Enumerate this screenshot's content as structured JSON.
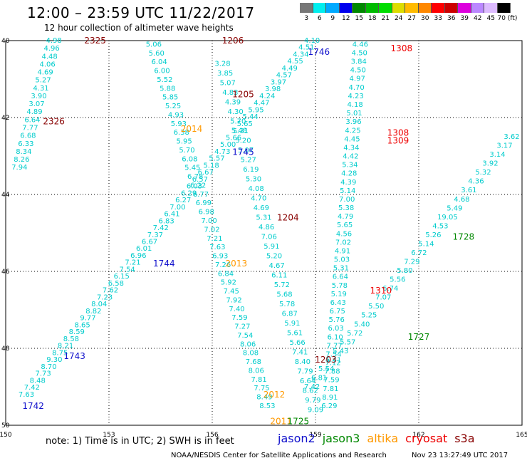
{
  "header": {
    "title": "12:00 – 23:59 UTC 11/22/2017",
    "subtitle": "12 hour collection of altimeter wave heights"
  },
  "color_scale": {
    "colors": [
      "#777777",
      "#00eeee",
      "#00aaff",
      "#0000ee",
      "#008800",
      "#00bb00",
      "#00dd00",
      "#dddd00",
      "#ffbb00",
      "#ff8800",
      "#ff0000",
      "#cc0000",
      "#dd00dd",
      "#bb88ff",
      "#ddbbff",
      "#000000"
    ],
    "labels": [
      "3",
      "6",
      "9",
      "12",
      "15",
      "18",
      "21",
      "24",
      "27",
      "30",
      "33",
      "36",
      "39",
      "42",
      "45",
      "70 (ft)"
    ]
  },
  "footer": {
    "note": "note:  1) Time is in UTC;  2) SWH is in feet",
    "credit": "NOAA/NESDIS Center for Satellite Applications and Research",
    "timestamp": "Nov 23 13:27:49 UTC 2017",
    "legend": [
      {
        "name": "jason2",
        "color": "#1010cc"
      },
      {
        "name": "jason3",
        "color": "#008800"
      },
      {
        "name": "altika",
        "color": "#ff9900"
      },
      {
        "name": "cryosat",
        "color": "#ee0000"
      },
      {
        "name": "s3a",
        "color": "#880000"
      }
    ]
  },
  "chart_data": {
    "type": "scatter",
    "title": "12:00 – 23:59 UTC 11/22/2017",
    "subtitle": "12 hour collection of altimeter wave heights",
    "x_axis": {
      "label": "",
      "range": [
        150,
        165
      ],
      "ticks": [
        "150",
        "153",
        "156",
        "159",
        "162",
        "165"
      ]
    },
    "y_axis": {
      "label": "",
      "range": [
        40,
        50
      ],
      "ticks": [
        "40",
        "42",
        "44",
        "46",
        "48",
        "50"
      ]
    },
    "grid": true,
    "units": "ft",
    "time_labels": [
      {
        "text": "2325",
        "lon": 152.6,
        "lat": 40.0,
        "color": "#880000"
      },
      {
        "text": "2326",
        "lon": 151.4,
        "lat": 42.1,
        "color": "#880000"
      },
      {
        "text": "1206",
        "lon": 156.6,
        "lat": 40.0,
        "color": "#880000"
      },
      {
        "text": "1205",
        "lon": 156.9,
        "lat": 41.4,
        "color": "#880000"
      },
      {
        "text": "1204",
        "lon": 158.2,
        "lat": 44.6,
        "color": "#880000"
      },
      {
        "text": "1203",
        "lon": 159.3,
        "lat": 48.3,
        "color": "#880000"
      },
      {
        "text": "1746",
        "lon": 159.1,
        "lat": 40.3,
        "color": "#1010cc"
      },
      {
        "text": "1745",
        "lon": 156.9,
        "lat": 42.9,
        "color": "#1010cc"
      },
      {
        "text": "1744",
        "lon": 154.6,
        "lat": 45.8,
        "color": "#1010cc"
      },
      {
        "text": "1743",
        "lon": 152.0,
        "lat": 48.2,
        "color": "#1010cc"
      },
      {
        "text": "1742",
        "lon": 150.8,
        "lat": 49.5,
        "color": "#1010cc"
      },
      {
        "text": "1308",
        "lon": 161.5,
        "lat": 40.2,
        "color": "#ee0000"
      },
      {
        "text": "1308",
        "lon": 161.4,
        "lat": 42.4,
        "color": "#ee0000"
      },
      {
        "text": "1309",
        "lon": 161.4,
        "lat": 42.6,
        "color": "#ee0000"
      },
      {
        "text": "1310",
        "lon": 160.9,
        "lat": 46.5,
        "color": "#ee0000"
      },
      {
        "text": "2014",
        "lon": 155.4,
        "lat": 42.3,
        "color": "#ff9900"
      },
      {
        "text": "2013",
        "lon": 156.7,
        "lat": 45.8,
        "color": "#ff9900"
      },
      {
        "text": "2012",
        "lon": 157.8,
        "lat": 49.2,
        "color": "#ff9900"
      },
      {
        "text": "2011",
        "lon": 158.0,
        "lat": 49.9,
        "color": "#ff9900"
      },
      {
        "text": "1725",
        "lon": 158.5,
        "lat": 49.9,
        "color": "#008800"
      },
      {
        "text": "1727",
        "lon": 162.0,
        "lat": 47.7,
        "color": "#008800"
      },
      {
        "text": "1728",
        "lon": 163.3,
        "lat": 45.1,
        "color": "#008800"
      }
    ],
    "series": [
      {
        "name": "s3a",
        "color": "#00cccc",
        "start": [
          151.4,
          40.0
        ],
        "end": [
          150.4,
          43.3
        ],
        "values": [
          "4.98",
          "4.96",
          "4.48",
          "4.06",
          "4.69",
          "5.27",
          "4.31",
          "3.90",
          "3.07",
          "4.89",
          "6.64",
          "7.77",
          "6.68",
          "6.33",
          "8.34",
          "8.26",
          "7.94"
        ]
      },
      {
        "name": "jason2",
        "color": "#00cccc",
        "start": [
          158.9,
          40.0
        ],
        "end": [
          150.6,
          49.2
        ],
        "values": [
          "4.10",
          "4.51",
          "4.34",
          "4.55",
          "4.49",
          "4.57",
          "3.97",
          "3.98",
          "4.24",
          "4.47",
          "5.95",
          "5.44",
          "5.65",
          "5.48",
          "5.66",
          "5.00",
          "4.73",
          "5.57",
          "5.18",
          "6.67",
          "6.57",
          "6.03",
          "6.29",
          "6.27",
          "7.00",
          "6.41",
          "6.83",
          "7.42",
          "7.37",
          "6.67",
          "6.01",
          "6.96",
          "7.21",
          "7.54",
          "6.15",
          "6.58",
          "7.62",
          "7.23",
          "8.04",
          "8.82",
          "9.77",
          "8.65",
          "8.59",
          "8.58",
          "8.21",
          "8.75",
          "9.30",
          "8.70",
          "7.73",
          "8.48",
          "7.42",
          "7.63"
        ]
      },
      {
        "name": "altika",
        "color": "#00cccc",
        "start": [
          154.3,
          40.1
        ],
        "end": [
          157.6,
          49.5
        ],
        "values": [
          "5.06",
          "5.60",
          "6.04",
          "6.00",
          "5.52",
          "5.88",
          "5.85",
          "5.25",
          "4.93",
          "5.93",
          "6.38",
          "5.95",
          "5.70",
          "6.08",
          "5.45",
          "6.78",
          "6.22",
          "6.77",
          "6.99",
          "6.98",
          "7.00",
          "7.02",
          "7.21",
          "7.63",
          "6.93",
          "7.26",
          "6.84",
          "5.92",
          "7.45",
          "7.92",
          "7.40",
          "7.59",
          "7.27",
          "7.54",
          "8.06",
          "8.08",
          "7.68",
          "8.06",
          "7.81",
          "7.75",
          "8.49",
          "8.53"
        ]
      },
      {
        "name": "s3a",
        "color": "#00cccc",
        "start": [
          156.3,
          40.6
        ],
        "end": [
          159.0,
          49.6
        ],
        "values": [
          "3.28",
          "3.85",
          "5.07",
          "4.83",
          "4.39",
          "4.30",
          "5.70",
          "5.31",
          "5.20",
          "5.07",
          "5.27",
          "6.19",
          "5.30",
          "4.08",
          "4.70",
          "4.69",
          "5.31",
          "4.86",
          "7.06",
          "5.91",
          "5.20",
          "4.67",
          "6.11",
          "5.72",
          "5.68",
          "5.78",
          "6.87",
          "5.91",
          "5.61",
          "5.66",
          "7.41",
          "8.40",
          "7.79",
          "6.64",
          "8.62",
          "9.79",
          "9.09"
        ]
      },
      {
        "name": "cryosat",
        "color": "#00cccc",
        "start": [
          160.3,
          40.1
        ],
        "end": [
          159.4,
          49.5
        ],
        "values": [
          "4.46",
          "4.50",
          "3.84",
          "4.50",
          "4.97",
          "4.70",
          "4.23",
          "4.18",
          "5.01",
          "3.96",
          "4.25",
          "4.45",
          "4.34",
          "4.42",
          "5.34",
          "4.28",
          "4.39",
          "5.14",
          "7.00",
          "5.38",
          "4.79",
          "5.65",
          "4.56",
          "7.02",
          "4.91",
          "5.03",
          "5.31",
          "6.64",
          "5.78",
          "5.19",
          "6.43",
          "6.75",
          "5.76",
          "6.03",
          "6.10",
          "7.77",
          "7.54",
          "7.12",
          "7.88",
          "7.59",
          "7.81",
          "8.91",
          "6.29"
        ]
      },
      {
        "name": "jason3",
        "color": "#00cccc",
        "start": [
          164.7,
          42.5
        ],
        "end": [
          158.9,
          49.0
        ],
        "values": [
          "3.62",
          "3.17",
          "3.14",
          "3.92",
          "5.32",
          "4.36",
          "3.61",
          "4.68",
          "5.49",
          "19.05",
          "4.53",
          "5.26",
          "5.14",
          "6.72",
          "7.29",
          "5.80",
          "5.56",
          "6.74",
          "7.07",
          "5.50",
          "5.25",
          "5.40",
          "5.72",
          "5.57",
          "5.43",
          "5.41",
          "5.54",
          "6.81",
          "7.42"
        ]
      }
    ]
  }
}
